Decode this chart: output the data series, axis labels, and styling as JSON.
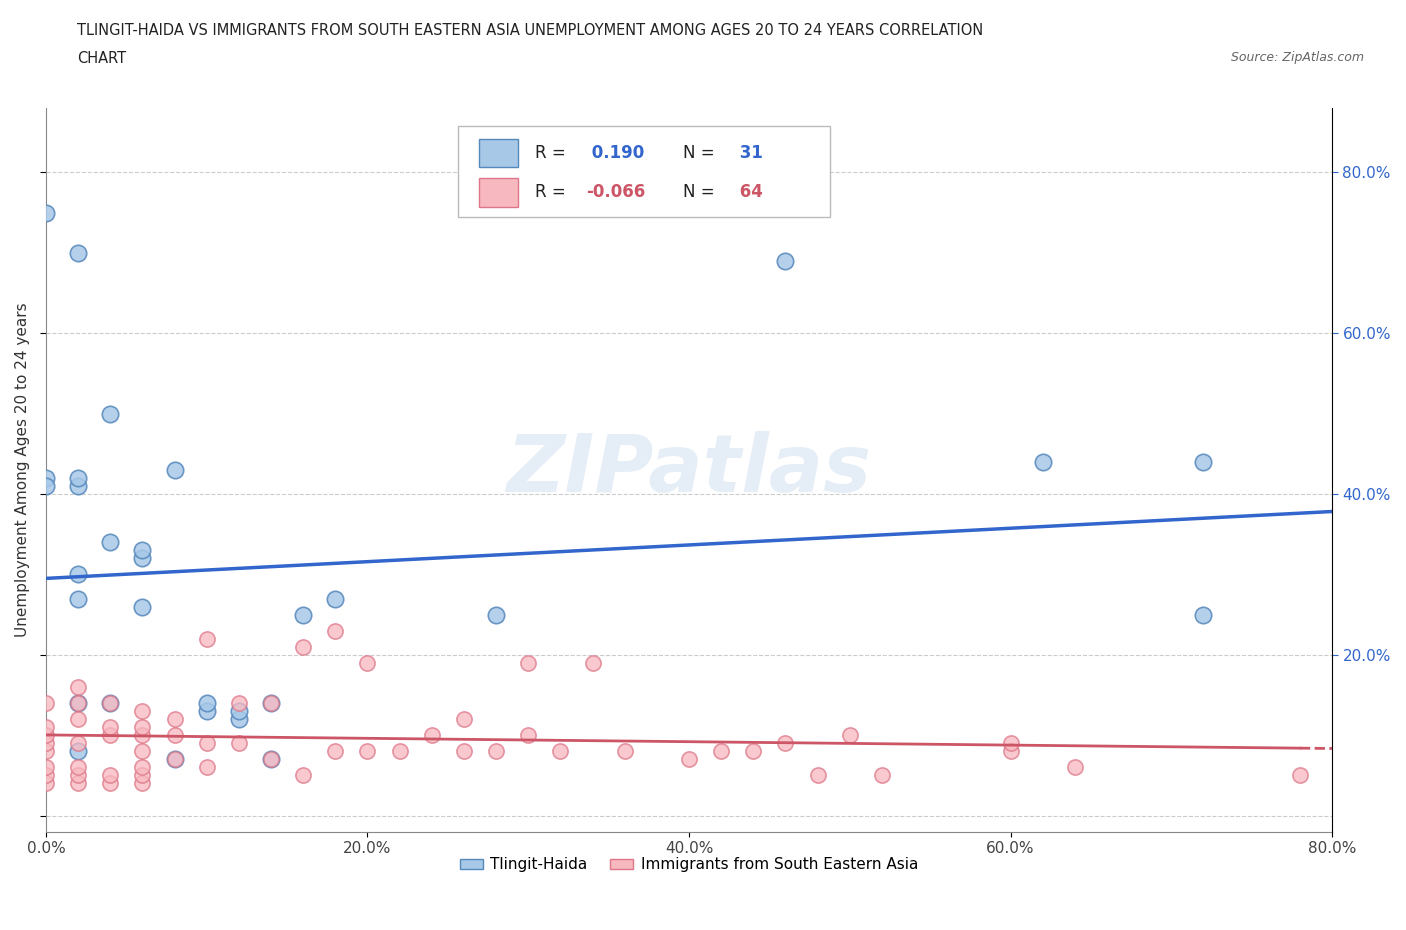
{
  "title_line1": "TLINGIT-HAIDA VS IMMIGRANTS FROM SOUTH EASTERN ASIA UNEMPLOYMENT AMONG AGES 20 TO 24 YEARS CORRELATION",
  "title_line2": "CHART",
  "source_text": "Source: ZipAtlas.com",
  "ylabel": "Unemployment Among Ages 20 to 24 years",
  "xlim": [
    0,
    80
  ],
  "ylim": [
    -2,
    88
  ],
  "ytick_vals": [
    0,
    20,
    40,
    60,
    80
  ],
  "xtick_vals": [
    0,
    20,
    40,
    60,
    80
  ],
  "xtick_labels": [
    "0.0%",
    "20.0%",
    "40.0%",
    "60.0%",
    "80.0%"
  ],
  "right_ytick_labels": [
    "20.0%",
    "40.0%",
    "60.0%",
    "80.0%"
  ],
  "right_ytick_vals": [
    20,
    40,
    60,
    80
  ],
  "blue_color": "#a8c8e8",
  "blue_edge_color": "#5588bb",
  "pink_color": "#f8b8c0",
  "pink_edge_color": "#dd7788",
  "blue_line_color": "#3366cc",
  "pink_line_color": "#cc5566",
  "watermark": "ZIPatlas",
  "tlingit_x": [
    2,
    2,
    2,
    2,
    2,
    4,
    4,
    6,
    6,
    8,
    8,
    10,
    10,
    12,
    12,
    14,
    14,
    16,
    2,
    0,
    0,
    28,
    46,
    2,
    4,
    6,
    62,
    72,
    72,
    18,
    0
  ],
  "tlingit_y": [
    27,
    30,
    41,
    42,
    14,
    14,
    50,
    32,
    33,
    43,
    7,
    13,
    14,
    12,
    13,
    7,
    14,
    25,
    70,
    42,
    41,
    25,
    69,
    8,
    34,
    26,
    44,
    25,
    44,
    27,
    75
  ],
  "immigrant_x": [
    0,
    0,
    0,
    0,
    0,
    0,
    0,
    0,
    2,
    2,
    2,
    2,
    2,
    2,
    2,
    4,
    4,
    4,
    4,
    4,
    6,
    6,
    6,
    6,
    6,
    6,
    6,
    8,
    8,
    8,
    10,
    10,
    10,
    12,
    12,
    14,
    14,
    16,
    16,
    18,
    18,
    20,
    20,
    22,
    24,
    26,
    26,
    28,
    30,
    30,
    32,
    34,
    36,
    40,
    42,
    44,
    46,
    48,
    50,
    52,
    60,
    60,
    64,
    78
  ],
  "immigrant_y": [
    4,
    5,
    6,
    8,
    9,
    10,
    11,
    14,
    4,
    5,
    6,
    9,
    12,
    14,
    16,
    4,
    5,
    10,
    11,
    14,
    4,
    5,
    6,
    8,
    10,
    11,
    13,
    7,
    10,
    12,
    6,
    9,
    22,
    9,
    14,
    7,
    14,
    5,
    21,
    8,
    23,
    8,
    19,
    8,
    10,
    8,
    12,
    8,
    10,
    19,
    8,
    19,
    8,
    7,
    8,
    8,
    9,
    5,
    10,
    5,
    8,
    9,
    6,
    5
  ]
}
